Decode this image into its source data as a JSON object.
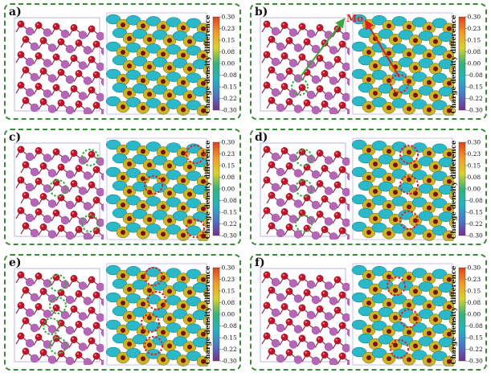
{
  "colorbar": {
    "title": "Charge density difference",
    "ticks": [
      "0.30",
      "0.23",
      "0.15",
      "0.08",
      "0.00",
      "-0.08",
      "-0.15",
      "-0.22",
      "-0.30"
    ],
    "colors": [
      "#7a2f8f",
      "#4a78c8",
      "#27b3c0",
      "#36b27a",
      "#d9d22a",
      "#f09a2a",
      "#e04020"
    ]
  },
  "panels": [
    {
      "id": "a",
      "label": "a)"
    },
    {
      "id": "b",
      "label": "b)",
      "annotation": "Mo"
    },
    {
      "id": "c",
      "label": "c)"
    },
    {
      "id": "d",
      "label": "d)"
    },
    {
      "id": "e",
      "label": "e)"
    },
    {
      "id": "f",
      "label": "f)"
    }
  ],
  "colors": {
    "frame": "#3a8a3a",
    "oxygen": "#c0142a",
    "metal": "#b566b8",
    "mo_highlight": "#3aa83a",
    "charge_circle": "#e02020",
    "lobe_cyan": "#2bb9c9",
    "lobe_yellow": "#c9b529"
  }
}
